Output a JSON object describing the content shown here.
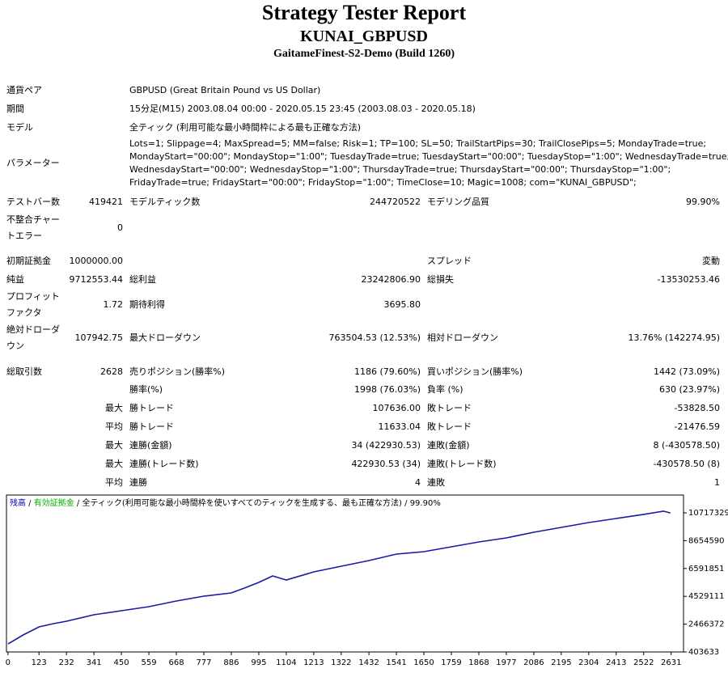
{
  "header": {
    "title": "Strategy Tester Report",
    "expert": "KUNAI_GBPUSD",
    "server": "GaitameFinest-S2-Demo (Build 1260)"
  },
  "report": {
    "rows": [
      {
        "label": "通貨ペア",
        "label2": "GBPUSD (Great Britain Pound vs US Dollar)"
      },
      {
        "label": "期間",
        "label2": "15分足(M15) 2003.08.04 00:00 - 2020.05.15 23:45 (2003.08.03 - 2020.05.18)"
      },
      {
        "label": "モデル",
        "label2": "全ティック (利用可能な最小時間枠による最も正確な方法)"
      },
      {
        "label": "パラメーター",
        "lines": [
          "Lots=1; Slippage=4; MaxSpread=5; MM=false; Risk=1; TP=100; SL=50; TrailStartPips=30; TrailClosePips=5; MondayTrade=true;",
          "MondayStart=\"00:00\"; MondayStop=\"1:00\"; TuesdayTrade=true; TuesdayStart=\"00:00\"; TuesdayStop=\"1:00\"; WednesdayTrade=true;",
          "WednesdayStart=\"00:00\"; WednesdayStop=\"1:00\"; ThursdayTrade=true; ThursdayStart=\"00:00\"; ThursdayStop=\"1:00\";",
          "FridayTrade=true; FridayStart=\"00:00\"; FridayStop=\"1:00\"; TimeClose=10; Magic=1008; com=\"KUNAI_GBPUSD\";"
        ]
      },
      {
        "label": "テストバー数",
        "value": "419421",
        "label2": "モデルティック数",
        "value2": "244720522",
        "label3": "モデリング品質",
        "value3": "99.90%"
      },
      {
        "label": "不整合チャートエラー",
        "value": "0"
      },
      {
        "label": "初期証拠金",
        "value": "1000000.00",
        "label3": "スプレッド",
        "value3": "変動"
      },
      {
        "label": "純益",
        "value": "9712553.44",
        "label2": "総利益",
        "value2": "23242806.90",
        "label3": "総損失",
        "value3": "-13530253.46"
      },
      {
        "label": "プロフィットファクタ",
        "value": "1.72",
        "label2": "期待利得",
        "value2": "3695.80"
      },
      {
        "label": "絶対ドローダウン",
        "value": "107942.75",
        "label2": "最大ドローダウン",
        "value2": "763504.53 (12.53%)",
        "label3": "相対ドローダウン",
        "value3": "13.76% (142274.95)"
      },
      {
        "label": "総取引数",
        "value": "2628",
        "label2": "売りポジション(勝率%)",
        "value2": "1186 (79.60%)",
        "label3": "買いポジション(勝率%)",
        "value3": "1442 (73.09%)"
      },
      {
        "label2": "勝率(%)",
        "value2": "1998 (76.03%)",
        "label3": "負率 (%)",
        "value3": "630 (23.97%)"
      },
      {
        "value": "最大",
        "label2": "勝トレード",
        "value2": "107636.00",
        "label3": "敗トレード",
        "value3": "-53828.50"
      },
      {
        "value": "平均",
        "label2": "勝トレード",
        "value2": "11633.04",
        "label3": "敗トレード",
        "value3": "-21476.59"
      },
      {
        "value": "最大",
        "label2": "連勝(金額)",
        "value2": "34 (422930.53)",
        "label3": "連敗(金額)",
        "value3": "8 (-430578.50)"
      },
      {
        "value": "最大",
        "label2": "連勝(トレード数)",
        "value2": "422930.53 (34)",
        "label3": "連敗(トレード数)",
        "value3": "-430578.50 (8)"
      },
      {
        "value": "平均",
        "label2": "連勝",
        "value2": "4",
        "label3": "連敗",
        "value3": "1"
      }
    ]
  },
  "chart_data": {
    "type": "line",
    "header": [
      {
        "text": "残高",
        "color": "#0000c8"
      },
      {
        "text": " / ",
        "color": "#000000"
      },
      {
        "text": "有効証拠金",
        "color": "#00b000"
      },
      {
        "text": " / 全ティック(利用可能な最小時間枠を使いすべてのティックを生成する、最も正確な方法) / 99.90%",
        "color": "#000000"
      }
    ],
    "x": [
      0,
      60,
      123,
      180,
      232,
      341,
      450,
      559,
      668,
      777,
      886,
      940,
      995,
      1050,
      1104,
      1213,
      1322,
      1432,
      1541,
      1650,
      1759,
      1868,
      1977,
      2086,
      2195,
      2304,
      2413,
      2522,
      2600,
      2628
    ],
    "series": [
      {
        "name": "残高",
        "color": "#1a1aa6",
        "values": [
          1000000,
          1660000,
          2260000,
          2500000,
          2680000,
          3160000,
          3460000,
          3760000,
          4180000,
          4540000,
          4780000,
          5150000,
          5560000,
          6040000,
          5740000,
          6340000,
          6760000,
          7180000,
          7660000,
          7840000,
          8200000,
          8560000,
          8860000,
          9280000,
          9640000,
          10000000,
          10300000,
          10600000,
          10840000,
          10712553
        ]
      }
    ],
    "xlim": [
      -6,
      2680
    ],
    "ylim": [
      403633,
      12036000
    ],
    "xticks": [
      0,
      123,
      232,
      341,
      450,
      559,
      668,
      777,
      886,
      995,
      1104,
      1213,
      1322,
      1432,
      1541,
      1650,
      1759,
      1868,
      1977,
      2086,
      2195,
      2304,
      2413,
      2522,
      2631
    ],
    "yticks": [
      403633,
      2466372,
      4529111,
      6591851,
      8654590,
      10717329
    ]
  }
}
